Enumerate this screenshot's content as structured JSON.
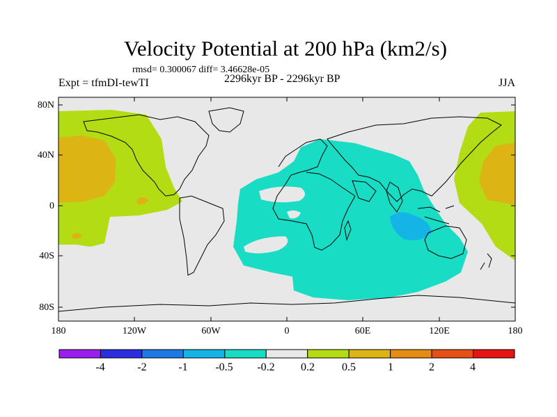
{
  "header": {
    "title": "Velocity Potential at 200 hPa (km2/s)",
    "stats": "rmsd= 0.300067 diff= 3.46628e-05",
    "left_label": "Expt = tfmDI-tewTI",
    "center_label": "2296kyr BP - 2296kyr BP",
    "right_label": "JJA"
  },
  "axes": {
    "y_ticks": [
      "80N",
      "40N",
      "0",
      "40S",
      "80S"
    ],
    "x_ticks": [
      "180",
      "120W",
      "60W",
      "0",
      "60E",
      "120E",
      "180"
    ]
  },
  "colorbar": {
    "labels": [
      "-4",
      "-2",
      "-1",
      "-0.5",
      "-0.2",
      "0.2",
      "0.5",
      "1",
      "2",
      "4"
    ],
    "colors": [
      "#9a1ef0",
      "#2d2de0",
      "#1e78e6",
      "#14b4e6",
      "#18dcc4",
      "#e8e8e8",
      "#b4dc14",
      "#dcb414",
      "#e68c14",
      "#e65014",
      "#e61414"
    ]
  },
  "map": {
    "background": "#e8e8e8",
    "fill_colors": {
      "pos_02": "#b4dc14",
      "pos_05": "#dcb414",
      "neg_02": "#18dcc4",
      "neg_05": "#14b4e6"
    }
  }
}
